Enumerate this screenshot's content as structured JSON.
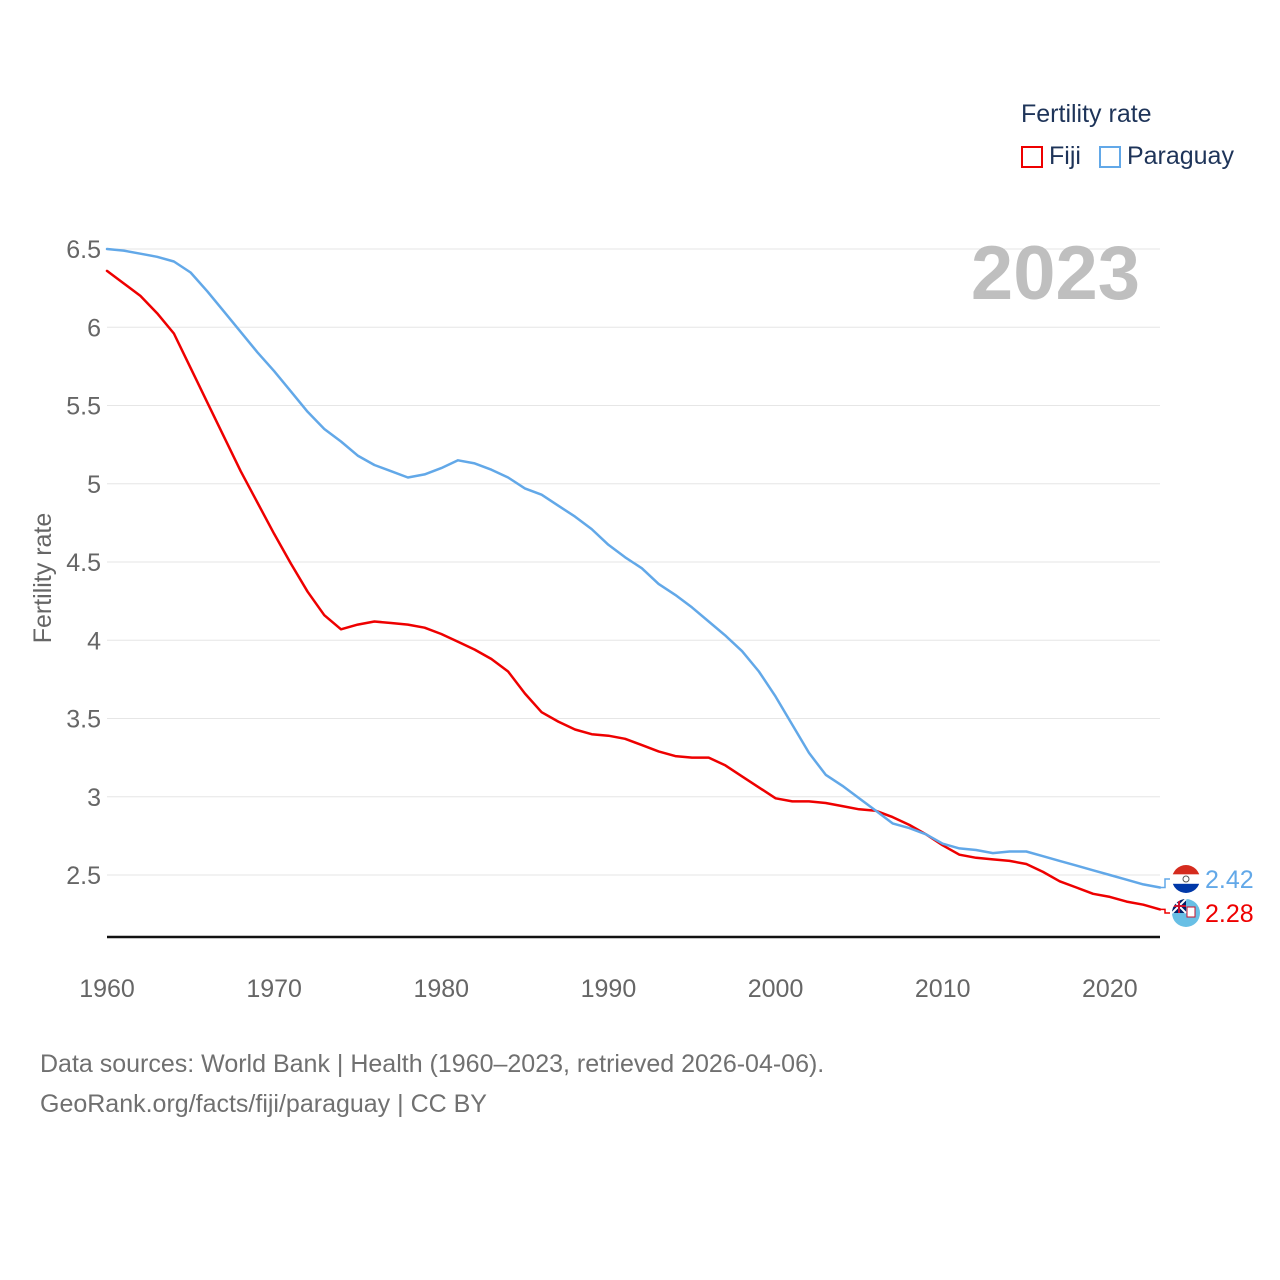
{
  "legend": {
    "title": "Fertility rate",
    "items": [
      {
        "label": "Fiji",
        "color": "#ee0000"
      },
      {
        "label": "Paraguay",
        "color": "#62a8e8"
      }
    ]
  },
  "footer": {
    "line1": "Data sources: World Bank | Health (1960–2023, retrieved 2026-04-06).",
    "line2": "GeoRank.org/facts/fiji/paraguay | CC BY"
  },
  "chart_data": {
    "type": "line",
    "title": "",
    "year_label": "2023",
    "xlabel": "",
    "ylabel": "Fertility rate",
    "xlim": [
      1960,
      2023
    ],
    "ylim": [
      2.1,
      6.5
    ],
    "x_ticks": [
      1960,
      1970,
      1980,
      1990,
      2000,
      2010,
      2020
    ],
    "y_ticks": [
      2.5,
      3,
      3.5,
      4,
      4.5,
      5,
      5.5,
      6,
      6.5
    ],
    "y_tick_labels": [
      "2.5",
      "3",
      "3.5",
      "4",
      "4.5",
      "5",
      "5.5",
      "6",
      "6.5"
    ],
    "x": [
      1960,
      1961,
      1962,
      1963,
      1964,
      1965,
      1966,
      1967,
      1968,
      1969,
      1970,
      1971,
      1972,
      1973,
      1974,
      1975,
      1976,
      1977,
      1978,
      1979,
      1980,
      1981,
      1982,
      1983,
      1984,
      1985,
      1986,
      1987,
      1988,
      1989,
      1990,
      1991,
      1992,
      1993,
      1994,
      1995,
      1996,
      1997,
      1998,
      1999,
      2000,
      2001,
      2002,
      2003,
      2004,
      2005,
      2006,
      2007,
      2008,
      2009,
      2010,
      2011,
      2012,
      2013,
      2014,
      2015,
      2016,
      2017,
      2018,
      2019,
      2020,
      2021,
      2022,
      2023
    ],
    "series": [
      {
        "name": "Fiji",
        "color": "#ee0000",
        "end_label": "2.28",
        "values": [
          6.36,
          6.28,
          6.2,
          6.09,
          5.96,
          5.74,
          5.52,
          5.3,
          5.08,
          4.88,
          4.68,
          4.49,
          4.31,
          4.16,
          4.07,
          4.1,
          4.12,
          4.11,
          4.1,
          4.08,
          4.04,
          3.99,
          3.94,
          3.88,
          3.8,
          3.66,
          3.54,
          3.48,
          3.43,
          3.4,
          3.39,
          3.37,
          3.33,
          3.29,
          3.26,
          3.25,
          3.25,
          3.2,
          3.13,
          3.06,
          2.99,
          2.97,
          2.97,
          2.96,
          2.94,
          2.92,
          2.91,
          2.87,
          2.82,
          2.76,
          2.69,
          2.63,
          2.61,
          2.6,
          2.59,
          2.57,
          2.52,
          2.46,
          2.42,
          2.38,
          2.36,
          2.33,
          2.31,
          2.28
        ]
      },
      {
        "name": "Paraguay",
        "color": "#62a8e8",
        "end_label": "2.42",
        "values": [
          6.5,
          6.49,
          6.47,
          6.45,
          6.42,
          6.35,
          6.23,
          6.1,
          5.97,
          5.84,
          5.72,
          5.59,
          5.46,
          5.35,
          5.27,
          5.18,
          5.12,
          5.08,
          5.04,
          5.06,
          5.1,
          5.15,
          5.13,
          5.09,
          5.04,
          4.97,
          4.93,
          4.86,
          4.79,
          4.71,
          4.61,
          4.53,
          4.46,
          4.36,
          4.29,
          4.21,
          4.12,
          4.03,
          3.93,
          3.8,
          3.64,
          3.46,
          3.28,
          3.14,
          3.07,
          2.99,
          2.91,
          2.83,
          2.8,
          2.76,
          2.7,
          2.67,
          2.66,
          2.64,
          2.65,
          2.65,
          2.62,
          2.59,
          2.56,
          2.53,
          2.5,
          2.47,
          2.44,
          2.42
        ]
      }
    ]
  }
}
